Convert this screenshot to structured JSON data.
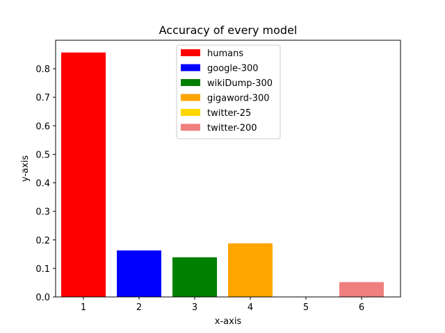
{
  "chart_data": {
    "type": "bar",
    "title": "Accuracy of every model",
    "xlabel": "x-axis",
    "ylabel": "y-axis",
    "categories": [
      "1",
      "2",
      "3",
      "4",
      "5",
      "6"
    ],
    "x": [
      1,
      2,
      3,
      4,
      5,
      6
    ],
    "series": [
      {
        "name": "humans",
        "x": 1,
        "value": 0.857,
        "color": "#ff0000"
      },
      {
        "name": "google-300",
        "x": 2,
        "value": 0.163,
        "color": "#0000ff"
      },
      {
        "name": "wikiDump-300",
        "x": 3,
        "value": 0.139,
        "color": "#008000"
      },
      {
        "name": "gigaword-300",
        "x": 4,
        "value": 0.188,
        "color": "#ffa500"
      },
      {
        "name": "twitter-25",
        "x": 5,
        "value": 0.0,
        "color": "#ffd700"
      },
      {
        "name": "twitter-200",
        "x": 6,
        "value": 0.052,
        "color": "#f08080"
      }
    ],
    "xlim": [
      0.5,
      6.7
    ],
    "ylim": [
      0.0,
      0.9
    ],
    "yticks": [
      0.0,
      0.1,
      0.2,
      0.3,
      0.4,
      0.5,
      0.6,
      0.7,
      0.8
    ],
    "ytick_labels": [
      "0.0",
      "0.1",
      "0.2",
      "0.3",
      "0.4",
      "0.5",
      "0.6",
      "0.7",
      "0.8"
    ],
    "grid": false,
    "legend_position": "top-center"
  }
}
